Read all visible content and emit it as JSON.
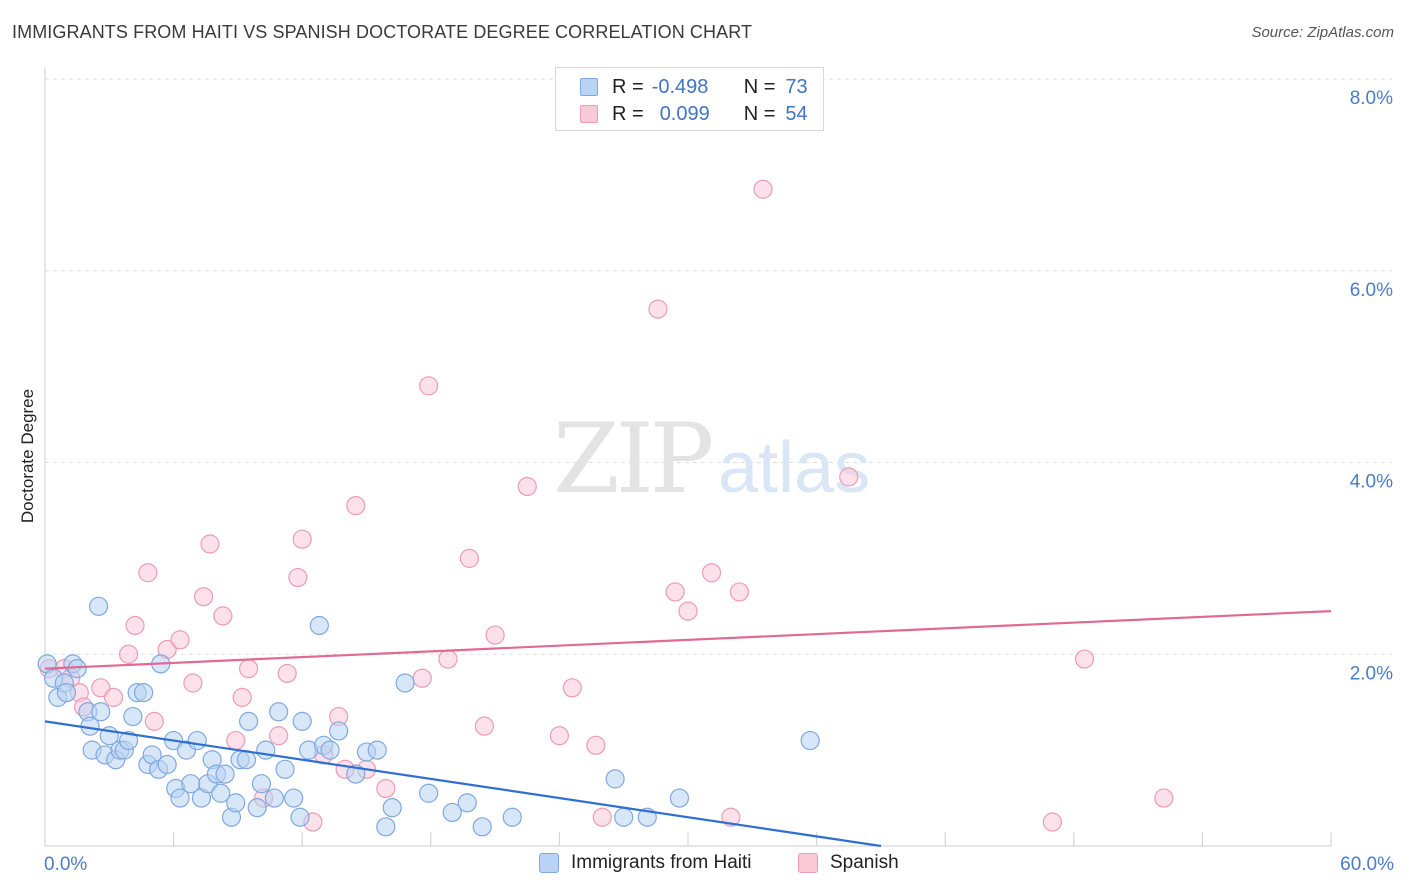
{
  "header": {
    "title": "IMMIGRANTS FROM HAITI VS SPANISH DOCTORATE DEGREE CORRELATION CHART",
    "source": "Source: ZipAtlas.com"
  },
  "watermark": {
    "zip": "ZIP",
    "atlas": "atlas"
  },
  "legend": {
    "rows": [
      {
        "r_label": "R =",
        "r_value": "-0.498",
        "n_label": "N =",
        "n_value": "73"
      },
      {
        "r_label": "R =",
        "r_value": "0.099",
        "n_label": "N =",
        "n_value": "54"
      }
    ]
  },
  "chart_data": {
    "type": "scatter",
    "title": "IMMIGRANTS FROM HAITI VS SPANISH DOCTORATE DEGREE CORRELATION CHART",
    "xlabel": "",
    "ylabel": "Doctorate Degree",
    "xlim": [
      0,
      60
    ],
    "ylim": [
      0,
      8.0
    ],
    "x_tick_labels": [
      "0.0%",
      "60.0%"
    ],
    "y_ticks": [
      2.0,
      4.0,
      6.0,
      8.0
    ],
    "y_tick_labels": [
      "2.0%",
      "4.0%",
      "6.0%",
      "8.0%"
    ],
    "grid": true,
    "colors": {
      "haiti_fill": "#b8d3f3",
      "haiti_stroke": "#7fa8e0",
      "haiti_line": "#2f6fd0",
      "spanish_fill": "#f9c9d8",
      "spanish_stroke": "#ec9bb6",
      "spanish_line": "#e06a93"
    },
    "series": [
      {
        "name": "Immigrants from Haiti",
        "trend": {
          "x0": 0,
          "y0": 1.3,
          "x1": 39,
          "y1": 0.0
        },
        "points": [
          [
            0.1,
            1.9
          ],
          [
            0.4,
            1.75
          ],
          [
            0.6,
            1.55
          ],
          [
            0.9,
            1.7
          ],
          [
            1.0,
            1.6
          ],
          [
            1.3,
            1.9
          ],
          [
            1.5,
            1.85
          ],
          [
            2.0,
            1.4
          ],
          [
            2.1,
            1.25
          ],
          [
            2.2,
            1.0
          ],
          [
            2.5,
            2.5
          ],
          [
            2.6,
            1.4
          ],
          [
            2.8,
            0.95
          ],
          [
            3.0,
            1.15
          ],
          [
            3.3,
            0.9
          ],
          [
            3.5,
            1.0
          ],
          [
            3.7,
            1.0
          ],
          [
            3.9,
            1.1
          ],
          [
            4.1,
            1.35
          ],
          [
            4.3,
            1.6
          ],
          [
            4.6,
            1.6
          ],
          [
            4.8,
            0.85
          ],
          [
            5.0,
            0.95
          ],
          [
            5.3,
            0.8
          ],
          [
            5.4,
            1.9
          ],
          [
            5.7,
            0.85
          ],
          [
            6.0,
            1.1
          ],
          [
            6.1,
            0.6
          ],
          [
            6.3,
            0.5
          ],
          [
            6.6,
            1.0
          ],
          [
            6.8,
            0.65
          ],
          [
            7.1,
            1.1
          ],
          [
            7.3,
            0.5
          ],
          [
            7.6,
            0.65
          ],
          [
            7.8,
            0.9
          ],
          [
            8.0,
            0.75
          ],
          [
            8.2,
            0.55
          ],
          [
            8.4,
            0.75
          ],
          [
            8.7,
            0.3
          ],
          [
            8.9,
            0.45
          ],
          [
            9.1,
            0.9
          ],
          [
            9.4,
            0.9
          ],
          [
            9.5,
            1.3
          ],
          [
            9.9,
            0.4
          ],
          [
            10.1,
            0.65
          ],
          [
            10.3,
            1.0
          ],
          [
            10.7,
            0.5
          ],
          [
            10.9,
            1.4
          ],
          [
            11.2,
            0.8
          ],
          [
            11.6,
            0.5
          ],
          [
            11.9,
            0.3
          ],
          [
            12.0,
            1.3
          ],
          [
            12.3,
            1.0
          ],
          [
            12.8,
            2.3
          ],
          [
            13.0,
            1.05
          ],
          [
            13.3,
            1.0
          ],
          [
            13.7,
            1.2
          ],
          [
            14.5,
            0.75
          ],
          [
            15.0,
            0.98
          ],
          [
            15.5,
            1.0
          ],
          [
            15.9,
            0.2
          ],
          [
            16.2,
            0.4
          ],
          [
            16.8,
            1.7
          ],
          [
            17.9,
            0.55
          ],
          [
            19.0,
            0.35
          ],
          [
            19.7,
            0.45
          ],
          [
            20.4,
            0.2
          ],
          [
            21.8,
            0.3
          ],
          [
            26.6,
            0.7
          ],
          [
            27.0,
            0.3
          ],
          [
            28.1,
            0.3
          ],
          [
            29.6,
            0.5
          ],
          [
            35.7,
            1.1
          ]
        ]
      },
      {
        "name": "Spanish",
        "trend": {
          "x0": 0,
          "y0": 1.85,
          "x1": 60,
          "y1": 2.45
        },
        "points": [
          [
            0.2,
            1.85
          ],
          [
            0.9,
            1.85
          ],
          [
            1.2,
            1.75
          ],
          [
            1.6,
            1.6
          ],
          [
            1.8,
            1.45
          ],
          [
            2.6,
            1.65
          ],
          [
            3.2,
            1.55
          ],
          [
            3.9,
            2.0
          ],
          [
            4.2,
            2.3
          ],
          [
            4.8,
            2.85
          ],
          [
            5.1,
            1.3
          ],
          [
            5.7,
            2.05
          ],
          [
            6.3,
            2.15
          ],
          [
            6.9,
            1.7
          ],
          [
            7.4,
            2.6
          ],
          [
            7.7,
            3.15
          ],
          [
            8.3,
            2.4
          ],
          [
            8.9,
            1.1
          ],
          [
            9.2,
            1.55
          ],
          [
            9.5,
            1.85
          ],
          [
            10.2,
            0.5
          ],
          [
            10.9,
            1.15
          ],
          [
            11.3,
            1.8
          ],
          [
            11.8,
            2.8
          ],
          [
            12.0,
            3.2
          ],
          [
            12.5,
            0.25
          ],
          [
            13.0,
            0.95
          ],
          [
            13.7,
            1.35
          ],
          [
            14.0,
            0.8
          ],
          [
            14.5,
            3.55
          ],
          [
            15.0,
            0.8
          ],
          [
            15.9,
            0.6
          ],
          [
            17.6,
            1.75
          ],
          [
            17.9,
            4.8
          ],
          [
            18.8,
            1.95
          ],
          [
            19.8,
            3.0
          ],
          [
            20.5,
            1.25
          ],
          [
            21.0,
            2.2
          ],
          [
            22.5,
            3.75
          ],
          [
            24.0,
            1.15
          ],
          [
            24.6,
            1.65
          ],
          [
            25.7,
            1.05
          ],
          [
            26.0,
            0.3
          ],
          [
            28.6,
            5.6
          ],
          [
            29.4,
            2.65
          ],
          [
            30.0,
            2.45
          ],
          [
            31.1,
            2.85
          ],
          [
            32.0,
            0.3
          ],
          [
            32.4,
            2.65
          ],
          [
            33.5,
            6.85
          ],
          [
            37.5,
            3.85
          ],
          [
            47.0,
            0.25
          ],
          [
            48.5,
            1.95
          ],
          [
            52.2,
            0.5
          ]
        ]
      }
    ]
  }
}
